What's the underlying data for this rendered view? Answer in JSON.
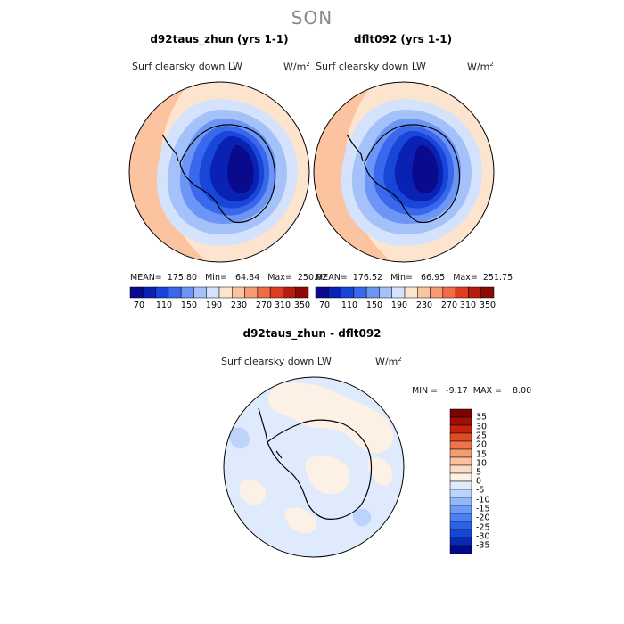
{
  "season": "SON",
  "colors": {
    "abs_scale": [
      "#0a0a8c",
      "#0a22b4",
      "#1746d8",
      "#3a68ec",
      "#6d95f5",
      "#a4c2f9",
      "#d4e3fb",
      "#fde4cf",
      "#fbc3a0",
      "#f79a72",
      "#ef6c45",
      "#df3d20",
      "#b51d10",
      "#8c0a08"
    ],
    "diff_scale": [
      "#000a8c",
      "#0a28b4",
      "#1446d8",
      "#2d62e6",
      "#4c80f0",
      "#6e9bf5",
      "#93b8f8",
      "#bcd3fb",
      "#dfeafc",
      "#fdf0e4",
      "#fbdcc4",
      "#f9c1a0",
      "#f59c72",
      "#ef744a",
      "#e24a22",
      "#c5220e",
      "#a00e06",
      "#7a0402"
    ],
    "coastline": "#000000"
  },
  "panels": {
    "left": {
      "title": "d92taus_zhun (yrs 1-1)",
      "variable": "Surf clearsky down LW",
      "units": "W/m",
      "units_sup": "2",
      "stats": "MEAN=  175.80   Min=   64.84   Max=  250.02",
      "colorbar_labels": [
        "70",
        "110",
        "150",
        "190",
        "230",
        "270",
        "310",
        "350"
      ]
    },
    "right": {
      "title": "dflt092 (yrs 1-1)",
      "variable": "Surf clearsky down LW",
      "units": "W/m",
      "units_sup": "2",
      "stats": "MEAN=  176.52   Min=   66.95   Max=  251.75",
      "colorbar_labels": [
        "70",
        "110",
        "150",
        "190",
        "230",
        "270",
        "310",
        "350"
      ]
    },
    "diff": {
      "title": "d92taus_zhun - dflt092",
      "variable": "Surf clearsky down LW",
      "units": "W/m",
      "units_sup": "2",
      "stats": "MIN =   -9.17  MAX =    8.00",
      "colorbar_labels": [
        "35",
        "30",
        "25",
        "20",
        "15",
        "10",
        "5",
        "0",
        "-5",
        "-10",
        "-15",
        "-20",
        "-25",
        "-30",
        "-35"
      ]
    }
  }
}
